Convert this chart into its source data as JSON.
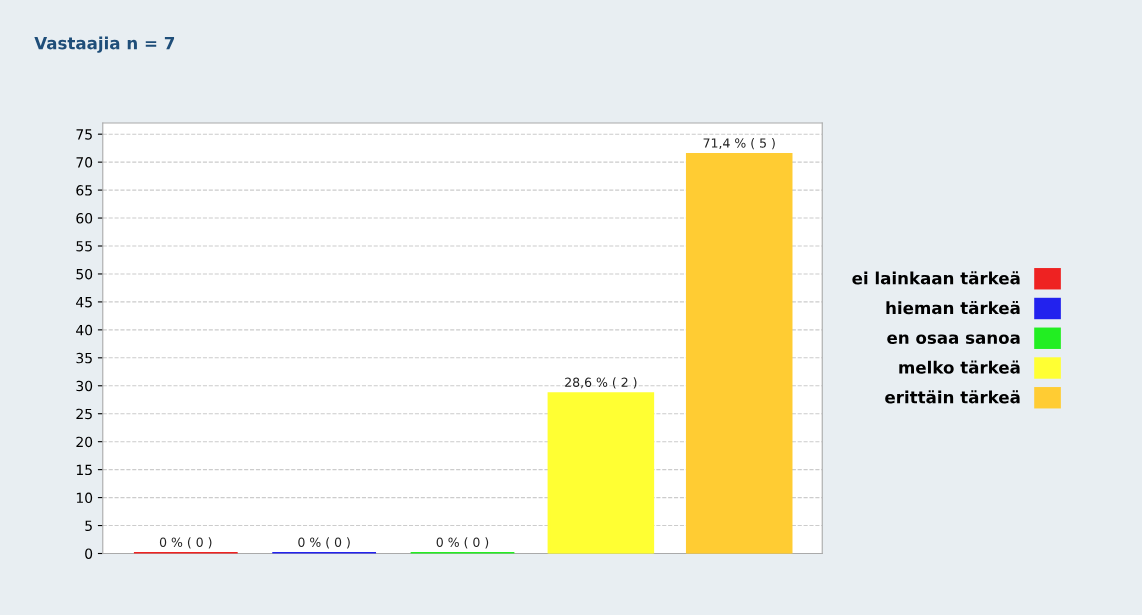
{
  "chart_data": {
    "type": "bar",
    "title": "Vastaajia n = 7",
    "categories": [
      null,
      null,
      null,
      null,
      null
    ],
    "series": [
      {
        "name": "ei lainkaan tärkeä",
        "color": "#ee2222",
        "values": [
          0,
          null,
          null,
          null,
          null
        ],
        "value_labels": [
          "0 % ( 0 )",
          null,
          null,
          null,
          null
        ]
      },
      {
        "name": "hieman tärkeä",
        "color": "#2222ee",
        "values": [
          null,
          0,
          null,
          null,
          null
        ],
        "value_labels": [
          null,
          "0 % ( 0 )",
          null,
          null,
          null
        ]
      },
      {
        "name": "en osaa sanoa",
        "color": "#22ee22",
        "values": [
          null,
          null,
          0,
          null,
          null
        ],
        "value_labels": [
          null,
          null,
          "0 % ( 0 )",
          null,
          null
        ]
      },
      {
        "name": "melko tärkeä",
        "color": "#ffff33",
        "values": [
          null,
          null,
          null,
          28.6,
          null
        ],
        "value_labels": [
          null,
          null,
          null,
          "28,6 % ( 2 )",
          null
        ]
      },
      {
        "name": "erittäin tärkeä",
        "color": "#ffcc33",
        "values": [
          null,
          null,
          null,
          null,
          71.4
        ],
        "value_labels": [
          null,
          null,
          null,
          null,
          "71,4 % ( 5 )"
        ]
      }
    ],
    "ylim": [
      0,
      77
    ],
    "yticks": [
      0,
      5,
      10,
      15,
      20,
      25,
      30,
      35,
      40,
      45,
      50,
      55,
      60,
      65,
      70,
      75
    ],
    "grid": "y",
    "legend": "right"
  }
}
